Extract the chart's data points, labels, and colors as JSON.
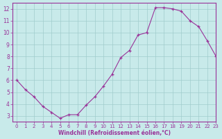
{
  "x": [
    0,
    1,
    2,
    3,
    4,
    5,
    6,
    7,
    8,
    9,
    10,
    11,
    12,
    13,
    14,
    15,
    16,
    17,
    18,
    19,
    20,
    21,
    22,
    23
  ],
  "y": [
    6.0,
    5.2,
    4.6,
    3.8,
    3.3,
    2.8,
    3.1,
    3.1,
    3.9,
    4.6,
    5.5,
    6.5,
    7.9,
    8.5,
    9.8,
    10.0,
    12.1,
    12.1,
    12.0,
    11.8,
    11.0,
    10.5,
    9.3,
    8.0
  ],
  "xlabel": "Windchill (Refroidissement éolien,°C)",
  "xlim": [
    -0.5,
    23
  ],
  "ylim": [
    2.5,
    12.5
  ],
  "yticks": [
    3,
    4,
    5,
    6,
    7,
    8,
    9,
    10,
    11,
    12
  ],
  "xticks": [
    0,
    1,
    2,
    3,
    4,
    5,
    6,
    7,
    8,
    9,
    10,
    11,
    12,
    13,
    14,
    15,
    16,
    17,
    18,
    19,
    20,
    21,
    22,
    23
  ],
  "line_color": "#993399",
  "marker": "+",
  "background_color": "#c8eaea",
  "grid_color": "#a0cccc",
  "axis_label_color": "#993399",
  "tick_color": "#993399",
  "border_color": "#993399"
}
